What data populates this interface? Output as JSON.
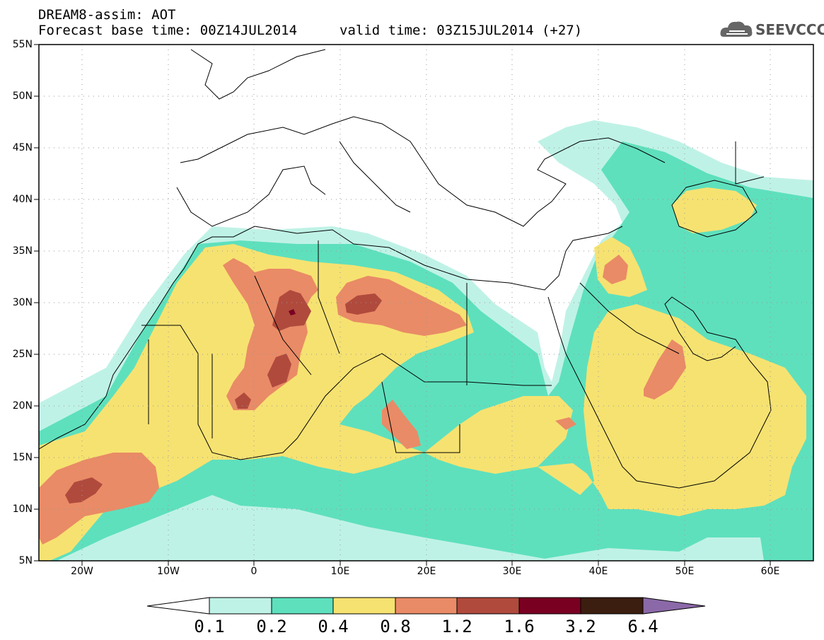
{
  "header": {
    "line1": "DREAM8-assim: AOT",
    "line2": "Forecast base time: 00Z14JUL2014",
    "line3": "valid time: 03Z15JUL2014 (+27)",
    "logo_text": "SEEVCCC"
  },
  "map": {
    "lat_ticks": [
      "55N",
      "50N",
      "45N",
      "40N",
      "35N",
      "30N",
      "25N",
      "20N",
      "15N",
      "10N",
      "5N"
    ],
    "lon_ticks": [
      "20W",
      "10W",
      "0",
      "10E",
      "20E",
      "30E",
      "40E",
      "50E",
      "60E"
    ],
    "lat_range": [
      5,
      55
    ],
    "lon_range": [
      -25,
      65
    ]
  },
  "legend": {
    "levels": [
      "0.1",
      "0.2",
      "0.4",
      "0.8",
      "1.2",
      "1.6",
      "3.2",
      "6.4"
    ],
    "colors": [
      "#ffffff",
      "#bff2e6",
      "#5ee0bd",
      "#f6e271",
      "#e98b66",
      "#b04a3d",
      "#7a0022",
      "#3b1e10",
      "#8b69a8"
    ]
  },
  "colors": {
    "c01": "#bff2e6",
    "c02": "#5ee0bd",
    "c04": "#f6e271",
    "c08": "#e98b66",
    "c12": "#b04a3d",
    "c16": "#7a0022"
  }
}
